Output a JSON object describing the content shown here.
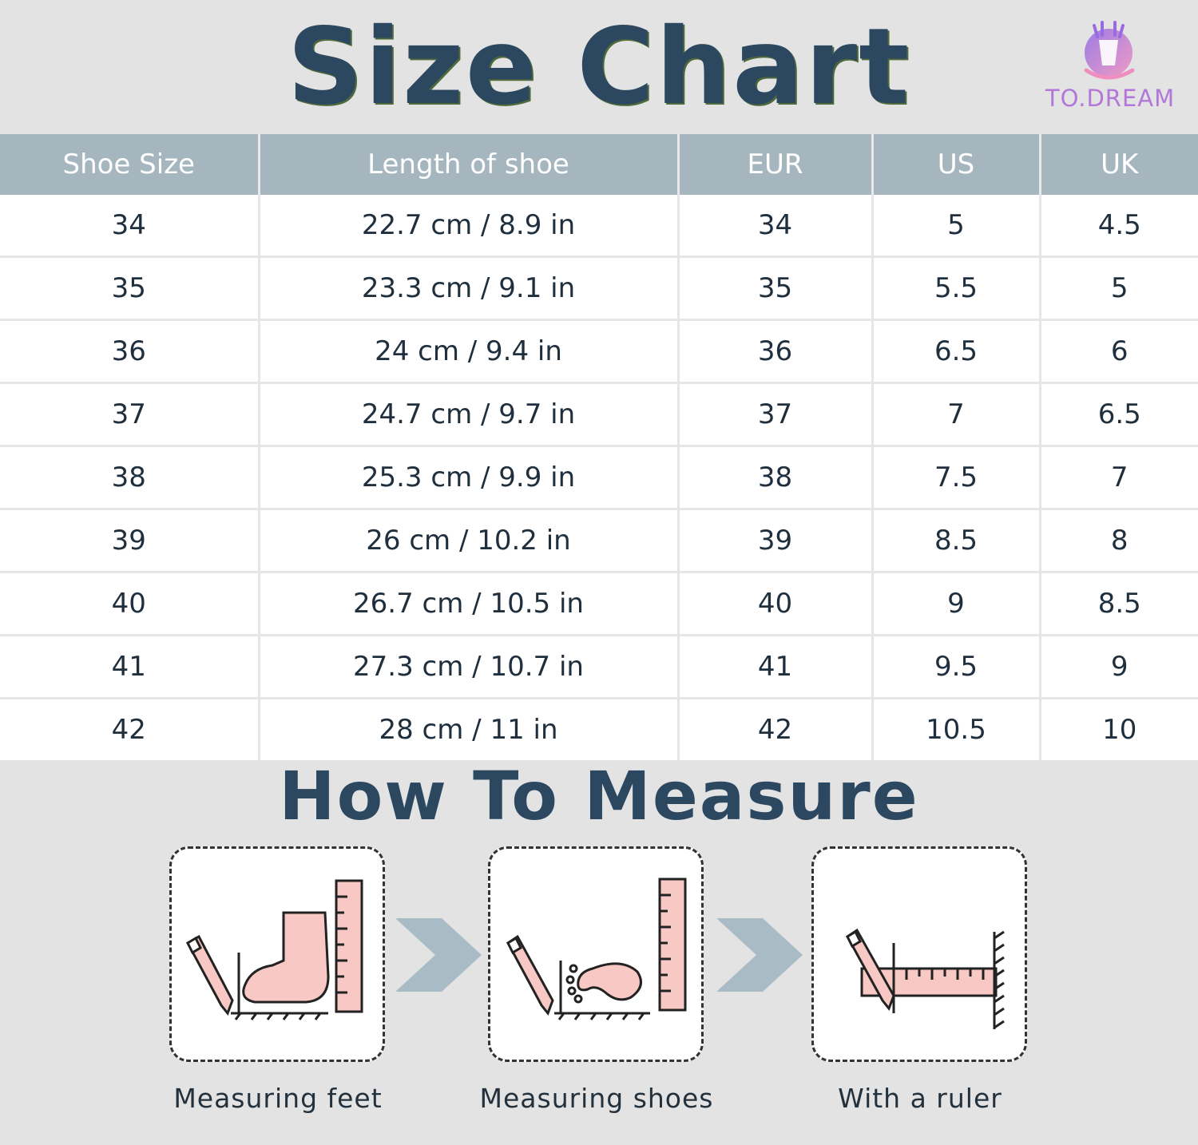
{
  "header": {
    "title": "Size Chart",
    "logo_text": "TO.DREAM",
    "logo_icon": "deer-icon"
  },
  "table": {
    "columns": [
      "Shoe Size",
      "Length of shoe",
      "EUR",
      "US",
      "UK"
    ],
    "rows": [
      [
        "34",
        "22.7 cm / 8.9 in",
        "34",
        "5",
        "4.5"
      ],
      [
        "35",
        "23.3 cm / 9.1 in",
        "35",
        "5.5",
        "5"
      ],
      [
        "36",
        "24 cm / 9.4 in",
        "36",
        "6.5",
        "6"
      ],
      [
        "37",
        "24.7 cm / 9.7 in",
        "37",
        "7",
        "6.5"
      ],
      [
        "38",
        "25.3 cm / 9.9 in",
        "38",
        "7.5",
        "7"
      ],
      [
        "39",
        "26 cm / 10.2 in",
        "39",
        "8.5",
        "8"
      ],
      [
        "40",
        "26.7 cm / 10.5 in",
        "40",
        "9",
        "8.5"
      ],
      [
        "41",
        "27.3 cm / 10.7 in",
        "41",
        "9.5",
        "9"
      ],
      [
        "42",
        "28 cm / 11 in",
        "42",
        "10.5",
        "10"
      ]
    ]
  },
  "measure": {
    "title": "How To Measure",
    "steps": [
      {
        "caption": "Measuring feet",
        "icon": "foot-measure-icon"
      },
      {
        "caption": "Measuring shoes",
        "icon": "shoe-measure-icon"
      },
      {
        "caption": "With a ruler",
        "icon": "ruler-icon"
      }
    ]
  },
  "colors": {
    "title": "#2c4760",
    "header_bg": "#a5b6bf",
    "logo": "#b277d8",
    "illustration_pink": "#f7c8c4",
    "arrow": "#a9bcc5"
  }
}
